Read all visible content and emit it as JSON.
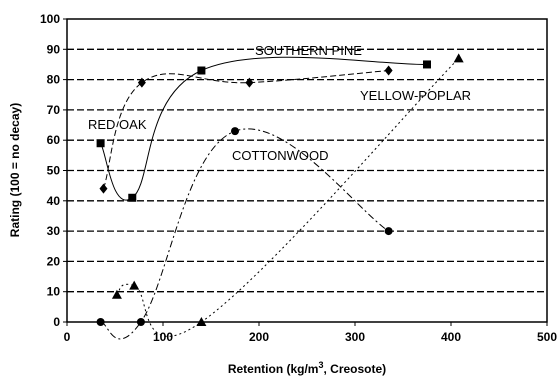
{
  "chart_data": {
    "type": "line",
    "xlabel": "Retention (kg/m",
    "xlabel_sup": "3",
    "xlabel_suffix": ", Creosote)",
    "ylabel": "Rating (100 = no decay)",
    "xlim": [
      0,
      500
    ],
    "ylim": [
      0,
      100
    ],
    "xticks": [
      0,
      100,
      200,
      300,
      400,
      500
    ],
    "yticks": [
      0,
      10,
      20,
      30,
      40,
      50,
      60,
      70,
      80,
      90,
      100
    ],
    "grid": "horizontal-dashed",
    "series": [
      {
        "name": "SOUTHERN PINE",
        "marker": "square",
        "line": "solid",
        "points": [
          [
            35,
            59
          ],
          [
            68,
            41
          ],
          [
            140,
            83
          ],
          [
            375,
            85
          ]
        ]
      },
      {
        "name": "YELLOW-POPLAR",
        "marker": "diamond",
        "line": "dash",
        "points": [
          [
            38,
            44
          ],
          [
            78,
            79
          ],
          [
            190,
            79
          ],
          [
            335,
            83
          ]
        ]
      },
      {
        "name": "COTTONWOOD",
        "marker": "circle",
        "line": "dashdot",
        "points": [
          [
            35,
            0
          ],
          [
            77,
            0
          ],
          [
            175,
            63
          ],
          [
            335,
            30
          ]
        ]
      },
      {
        "name": "RED OAK",
        "marker": "triangle",
        "line": "dot",
        "points": [
          [
            52,
            9
          ],
          [
            70,
            12
          ],
          [
            140,
            0
          ],
          [
            408,
            87
          ]
        ]
      }
    ]
  }
}
